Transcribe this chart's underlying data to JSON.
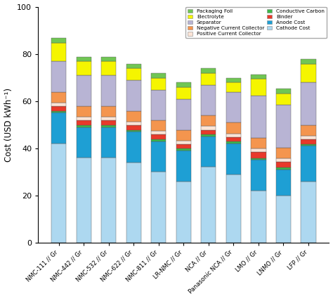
{
  "categories": [
    "NMC-111 // Gr",
    "NMC-442 // Gr",
    "NMC-532 // Gr",
    "NMC-622 // Gr",
    "NMC-811 // Gr",
    "LR-NMC // Gr",
    "NCA // Gr",
    "Panasonic NCA // Gr",
    "LMO // Gr",
    "LNMO // Gr",
    "LFP // Gr"
  ],
  "components": [
    "Cathode Cost",
    "Anode Cost",
    "Conductive Carbon",
    "Binder",
    "Positive Current Collector",
    "Negative Current Collector",
    "Separator",
    "Electrolyte",
    "Packaging Foil"
  ],
  "colors": [
    "#add8f0",
    "#1e9fd4",
    "#3cb84a",
    "#e8392a",
    "#fce4d6",
    "#f4954e",
    "#b8b4d4",
    "#f5f500",
    "#70c654"
  ],
  "data": {
    "Cathode Cost": [
      42,
      36,
      36,
      34,
      30,
      26,
      32,
      29,
      22,
      20,
      26
    ],
    "Anode Cost": [
      13,
      13,
      13,
      13,
      13,
      13,
      13,
      13,
      13,
      11,
      15
    ],
    "Conductive Carbon": [
      0.8,
      0.8,
      0.8,
      0.8,
      0.8,
      0.8,
      0.8,
      0.8,
      0.8,
      0.8,
      0.8
    ],
    "Binder": [
      2,
      2,
      2,
      2,
      2,
      2,
      2,
      2,
      2.5,
      2.5,
      2
    ],
    "Positive Current Collector": [
      1.5,
      1.5,
      1.5,
      1.5,
      1.5,
      1.5,
      1.5,
      1.5,
      1.5,
      1.5,
      1.5
    ],
    "Negative Current Collector": [
      4.5,
      4.5,
      4.5,
      4.5,
      4.5,
      4.5,
      4.5,
      4.5,
      4.5,
      4.5,
      4.5
    ],
    "Separator": [
      13,
      13,
      13,
      13,
      13,
      13,
      13,
      13,
      18,
      18,
      18
    ],
    "Electrolyte": [
      8,
      6,
      6,
      5,
      5,
      5,
      5,
      4,
      7,
      5,
      8
    ],
    "Packaging Foil": [
      2,
      2,
      2,
      2,
      2,
      2,
      2,
      2,
      2,
      2,
      2
    ]
  },
  "ylabel": "Cost (USD kWh⁻¹)",
  "ylim": [
    0,
    100
  ],
  "yticks": [
    0,
    20,
    40,
    60,
    80,
    100
  ],
  "bar_width": 0.6,
  "legend_cols_left": [
    "Packaging Foil",
    "Separator",
    "Positive Current Collector",
    "Binder",
    "Cathode Cost"
  ],
  "legend_cols_right": [
    "Electrolyte",
    "Negative Current Collector",
    "Conductive Carbon",
    "Anode Cost"
  ],
  "background_color": "#ffffff",
  "edge_color": "#555555"
}
